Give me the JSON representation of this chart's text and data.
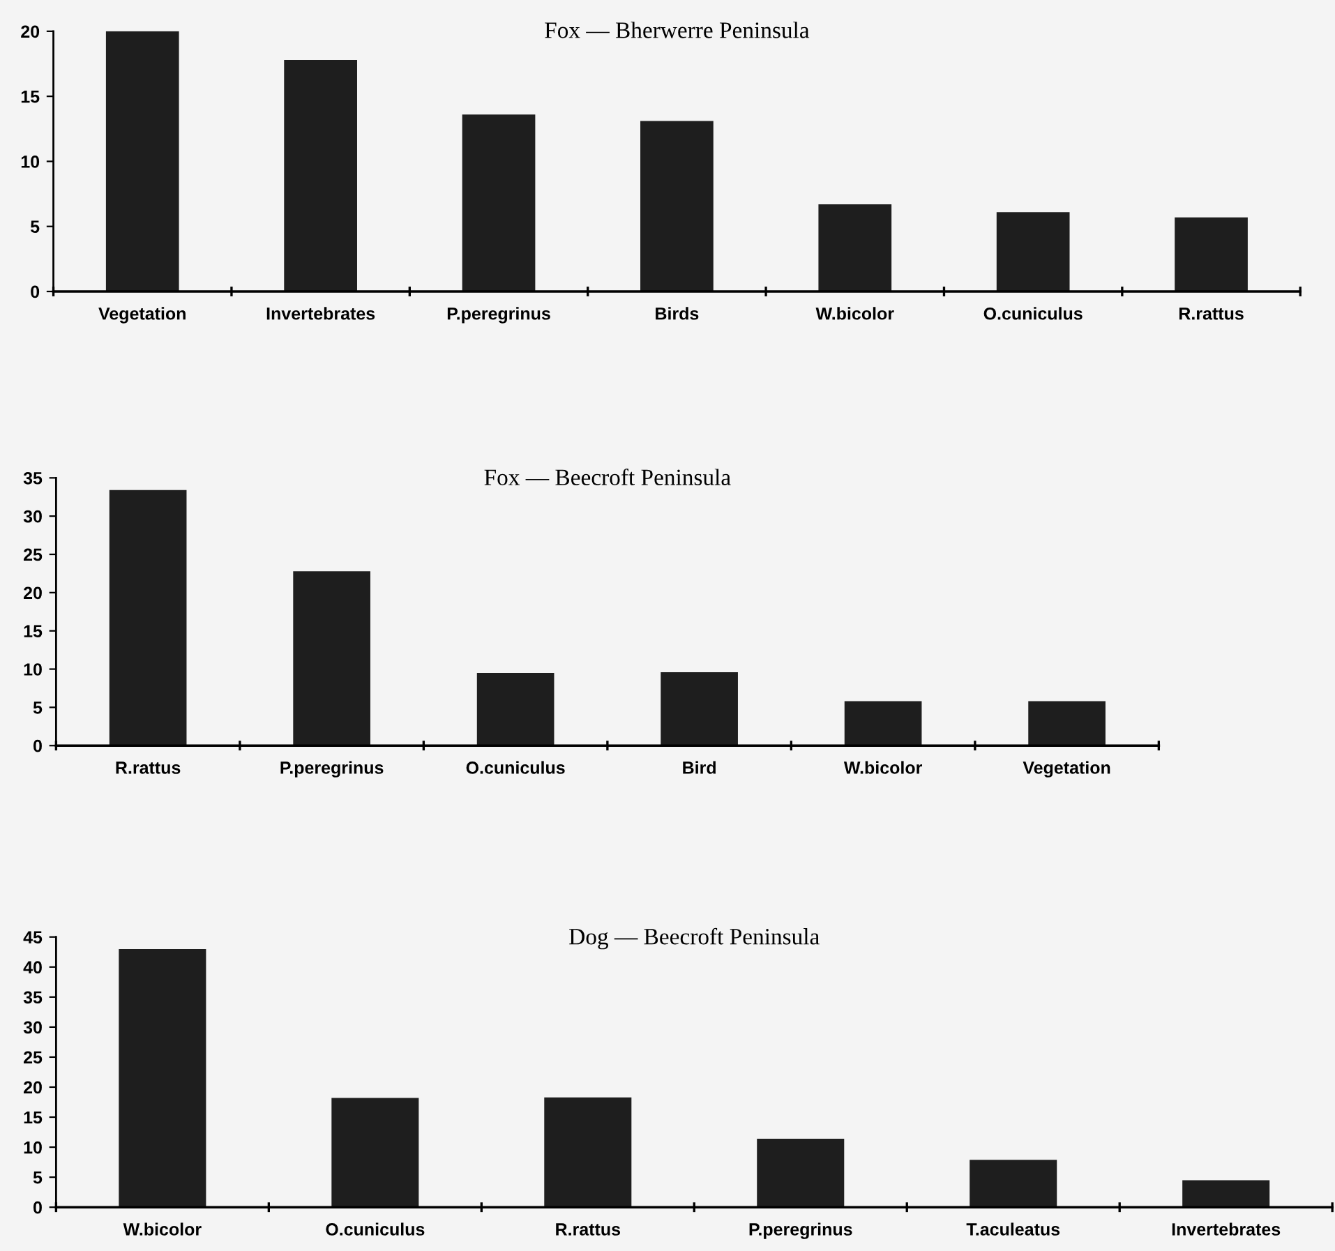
{
  "chart_data": [
    {
      "type": "bar",
      "title": "Fox — Bherwerre Peninsula",
      "categories": [
        "Vegetation",
        "Invertebrates",
        "P.peregrinus",
        "Birds",
        "W.bicolor",
        "O.cuniculus",
        "R.rattus"
      ],
      "values": [
        20,
        17.8,
        13.6,
        13.1,
        6.7,
        6.1,
        5.7
      ],
      "color": "#1e1e1e",
      "ylim": [
        0,
        20
      ],
      "yticks": [
        0,
        5,
        10,
        15,
        20
      ],
      "grid": false,
      "legend": false
    },
    {
      "type": "bar",
      "title": "Fox — Beecroft Peninsula",
      "categories": [
        "R.rattus",
        "P.peregrinus",
        "O.cuniculus",
        "Bird",
        "W.bicolor",
        "Vegetation"
      ],
      "values": [
        33.4,
        22.8,
        9.5,
        9.6,
        5.8,
        5.8
      ],
      "color": "#1e1e1e",
      "ylim": [
        0,
        35
      ],
      "yticks": [
        0,
        5,
        10,
        15,
        20,
        25,
        30,
        35
      ],
      "grid": false,
      "legend": false
    },
    {
      "type": "bar",
      "title": "Dog — Beecroft Peninsula",
      "categories": [
        "W.bicolor",
        "O.cuniculus",
        "R.rattus",
        "P.peregrinus",
        "T.aculeatus",
        "Invertebrates"
      ],
      "values": [
        43,
        18.2,
        18.3,
        11.4,
        7.9,
        4.5
      ],
      "color": "#1e1e1e",
      "ylim": [
        0,
        45
      ],
      "yticks": [
        0,
        5,
        10,
        15,
        20,
        25,
        30,
        35,
        40,
        45
      ],
      "grid": false,
      "legend": false
    }
  ]
}
